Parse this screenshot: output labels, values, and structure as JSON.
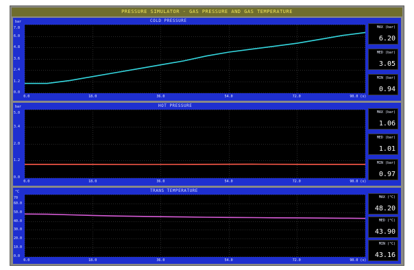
{
  "window": {
    "title": "PRESSURE SIMULATOR - GAS PRESSURE AND GAS TEMPERATURE"
  },
  "panels": [
    {
      "title": "COLD PRESSURE",
      "unit": "bar",
      "y_ticks": [
        "7.0",
        "6.0",
        "4.8",
        "3.6",
        "2.4",
        "1.2",
        "0.0"
      ],
      "x_ticks": [
        "0.0",
        "18.0",
        "36.0",
        "54.0",
        "72.0",
        "90.0 (s)"
      ],
      "stats": [
        {
          "label": "MAX (bar)",
          "value": "6.20"
        },
        {
          "label": "MED (bar)",
          "value": "3.05"
        },
        {
          "label": "MIN (bar)",
          "value": "0.94"
        }
      ]
    },
    {
      "title": "HOT PRESSURE",
      "unit": "bar",
      "y_ticks": [
        "5.0",
        "3.4",
        "2.0",
        "1.2",
        "0.0"
      ],
      "x_ticks": [
        "0.0",
        "18.0",
        "36.0",
        "54.0",
        "72.0",
        "90.0 (s)"
      ],
      "stats": [
        {
          "label": "MAX (bar)",
          "value": "1.06"
        },
        {
          "label": "MED (bar)",
          "value": "1.01"
        },
        {
          "label": "MIN (bar)",
          "value": "0.97"
        }
      ]
    },
    {
      "title": "TRANS TEMPERATURE",
      "unit": "°C",
      "y_ticks": [
        "70",
        "60.0",
        "50.0",
        "40.0",
        "30.0",
        "20.0",
        "10.0",
        "0.0"
      ],
      "x_ticks": [
        "0.0",
        "18.0",
        "36.0",
        "54.0",
        "72.0",
        "90.0 (s)"
      ],
      "stats": [
        {
          "label": "MAX (°C)",
          "value": "48.20"
        },
        {
          "label": "MED (°C)",
          "value": "43.90"
        },
        {
          "label": "MIN (°C)",
          "value": "43.16"
        }
      ]
    }
  ],
  "chart_data": [
    {
      "type": "line",
      "title": "COLD PRESSURE",
      "ylabel": "bar",
      "ylim": [
        0,
        7
      ],
      "xlim": [
        0,
        90
      ],
      "grid": true,
      "color": "#35d8e0",
      "x": [
        0,
        6,
        12,
        18,
        24,
        30,
        36,
        42,
        48,
        54,
        60,
        66,
        72,
        78,
        84,
        90
      ],
      "y": [
        1.0,
        1.0,
        1.3,
        1.7,
        2.1,
        2.5,
        2.9,
        3.3,
        3.8,
        4.2,
        4.5,
        4.8,
        5.1,
        5.5,
        5.9,
        6.2
      ]
    },
    {
      "type": "line",
      "title": "HOT PRESSURE",
      "ylabel": "bar",
      "ylim": [
        0,
        5
      ],
      "xlim": [
        0,
        90
      ],
      "grid": true,
      "color": "#ff5a4a",
      "x": [
        0,
        15,
        30,
        45,
        60,
        75,
        90
      ],
      "y": [
        1.01,
        1.01,
        1.0,
        1.01,
        1.02,
        1.01,
        1.01
      ]
    },
    {
      "type": "line",
      "title": "TRANS TEMPERATURE",
      "ylabel": "°C",
      "ylim": [
        0,
        70
      ],
      "xlim": [
        0,
        90
      ],
      "grid": true,
      "color": "#d85cd8",
      "x": [
        0,
        6,
        12,
        18,
        24,
        30,
        36,
        42,
        48,
        54,
        60,
        66,
        72,
        78,
        84,
        90
      ],
      "y": [
        48.2,
        48.0,
        47.3,
        46.6,
        46.0,
        45.6,
        45.2,
        44.9,
        44.6,
        44.4,
        44.2,
        44.0,
        43.9,
        43.7,
        43.5,
        43.3
      ]
    }
  ]
}
